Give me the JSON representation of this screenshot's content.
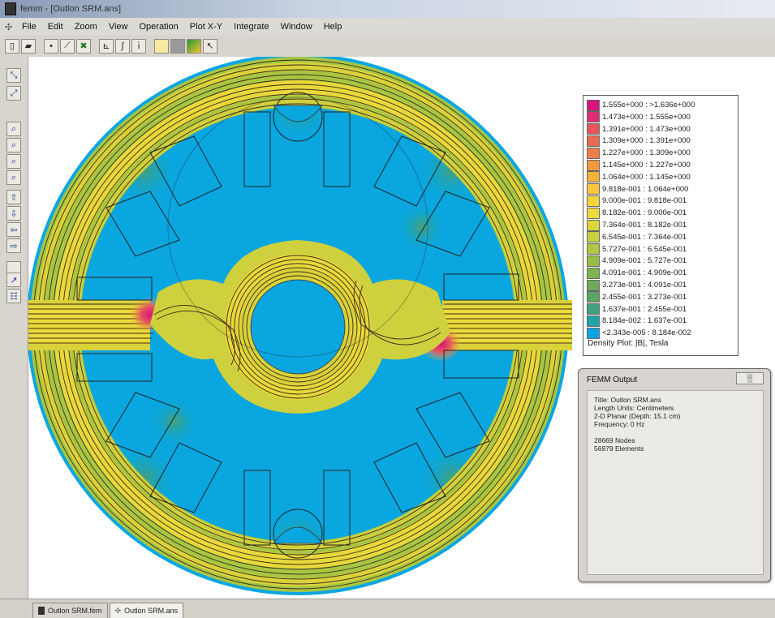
{
  "window": {
    "title": "femm - [Outlon SRM.ans]"
  },
  "menu": {
    "items": [
      "File",
      "Edit",
      "Zoom",
      "View",
      "Operation",
      "Plot X-Y",
      "Integrate",
      "Window",
      "Help"
    ]
  },
  "colors": {
    "scale": [
      "#d5147c",
      "#e03d6c",
      "#e5555e",
      "#ea6a52",
      "#ee7e48",
      "#f29a41",
      "#f5b33c",
      "#f8c83a",
      "#f3d33a",
      "#ecdb3a",
      "#dcd63b",
      "#c7cf3e",
      "#b0c642",
      "#98bd47",
      "#80b34f",
      "#6dab5a",
      "#5aa466",
      "#47a076",
      "#33a08b",
      "#1fa4a7",
      "#09a7cf",
      "#09a5e2"
    ],
    "background": "#09a6e0",
    "flux_line": "#3a2a1a"
  },
  "legend": {
    "ranges": [
      "1.555e+000 : >1.636e+000",
      "1.473e+000 : 1.555e+000",
      "1.391e+000 : 1.473e+000",
      "1.309e+000 : 1.391e+000",
      "1.227e+000 : 1.309e+000",
      "1.145e+000 : 1.227e+000",
      "1.064e+000 : 1.145e+000",
      "9.818e-001 : 1.064e+000",
      "9.000e-001 : 9.818e-001",
      "8.182e-001 : 9.000e-001",
      "7.364e-001 : 8.182e-001",
      "6.545e-001 : 7.364e-001",
      "5.727e-001 : 6.545e-001",
      "4.909e-001 : 5.727e-001",
      "4.091e-001 : 4.909e-001",
      "3.273e-001 : 4.091e-001",
      "2.455e-001 : 3.273e-001",
      "1.637e-001 : 2.455e-001",
      "8.184e-002 : 1.637e-001",
      "<2.343e-005 : 8.184e-002"
    ],
    "caption": "Density Plot: |B|, Tesla"
  },
  "output": {
    "title": "FEMM Output",
    "close_label": "",
    "lines": [
      "Title: Outlon SRM.ans",
      "Length Units: Centimeters",
      "2-D Planar (Depth: 15.1 cm)",
      "Frequency: 0 Hz",
      "",
      "28669 Nodes",
      "56979 Elements"
    ]
  },
  "tabs": [
    "Outlon SRM.fem",
    "Outlon SRM.ans"
  ],
  "toolbar_icons": [
    "new-file-icon",
    "open-file-icon",
    "select-point-icon",
    "select-contour-icon",
    "select-area-icon",
    "plot-xy-icon",
    "integrate-icon",
    "info-icon",
    "density-plot-icon",
    "contour-plot-icon",
    "vector-plot-icon",
    "wand-icon"
  ],
  "side_icons": [
    "zoom-in-icon",
    "zoom-out-icon",
    "zoom-window-icon",
    "zoom-natural-icon",
    "zoom-fit-icon",
    "pan-up-icon",
    "pan-down-icon",
    "pan-left-icon",
    "pan-right-icon",
    "snap-grid-icon",
    "show-mesh-icon",
    "grid-settings-icon"
  ]
}
